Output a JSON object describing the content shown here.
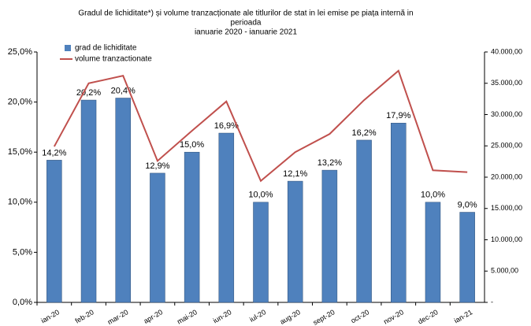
{
  "chart_data": {
    "type": "bar-line",
    "title": [
      "Gradul de lichiditate*) și volume tranzacționate ale titlurilor de stat in lei emise pe piața internă  in",
      "perioada",
      "ianuarie 2020  -  ianuarie 2021"
    ],
    "categories": [
      "ian-20",
      "feb-20",
      "mar-20",
      "apr-20",
      "mai-20",
      "iun-20",
      "iul-20",
      "aug-20",
      "sept-20",
      "oct-20",
      "nov-20",
      "dec-20",
      "ian-21"
    ],
    "series": [
      {
        "name": "grad de lichiditate",
        "type": "bar",
        "color": "#4f81bd",
        "values": [
          14.2,
          20.2,
          20.4,
          12.9,
          15.0,
          16.9,
          10.0,
          12.1,
          13.2,
          16.2,
          17.9,
          10.0,
          9.0
        ],
        "value_labels": [
          "14,2%",
          "20,2%",
          "20,4%",
          "12,9%",
          "15,0%",
          "16,9%",
          "10,0%",
          "12,1%",
          "13,2%",
          "16,2%",
          "17,9%",
          "10,0%",
          "9,0%"
        ]
      },
      {
        "name": "volume tranzactionate",
        "type": "line",
        "axis": "y2",
        "color": "#c0504d",
        "values": [
          24900,
          35000,
          36200,
          22600,
          27400,
          32100,
          19400,
          24000,
          26900,
          32300,
          37000,
          21100,
          20800
        ]
      }
    ],
    "ylim": [
      0,
      25
    ],
    "yticks": [
      {
        "value": 0,
        "label": "0,0%"
      },
      {
        "value": 5,
        "label": "5,0%"
      },
      {
        "value": 10,
        "label": "10,0%"
      },
      {
        "value": 15,
        "label": "15,0%"
      },
      {
        "value": 20,
        "label": "20,0%"
      },
      {
        "value": 25,
        "label": "25,0%"
      }
    ],
    "y2lim": [
      0,
      40000
    ],
    "y2ticks": [
      {
        "value": 0,
        "label": "-"
      },
      {
        "value": 5000,
        "label": "5.000,00"
      },
      {
        "value": 10000,
        "label": "10.000,00"
      },
      {
        "value": 15000,
        "label": "15.000,00"
      },
      {
        "value": 20000,
        "label": "20.000,00"
      },
      {
        "value": 25000,
        "label": "25.000,00"
      },
      {
        "value": 30000,
        "label": "30.000,00"
      },
      {
        "value": 35000,
        "label": "35.000,00"
      },
      {
        "value": 40000,
        "label": "40.000,00"
      }
    ],
    "legend": "top-left"
  }
}
